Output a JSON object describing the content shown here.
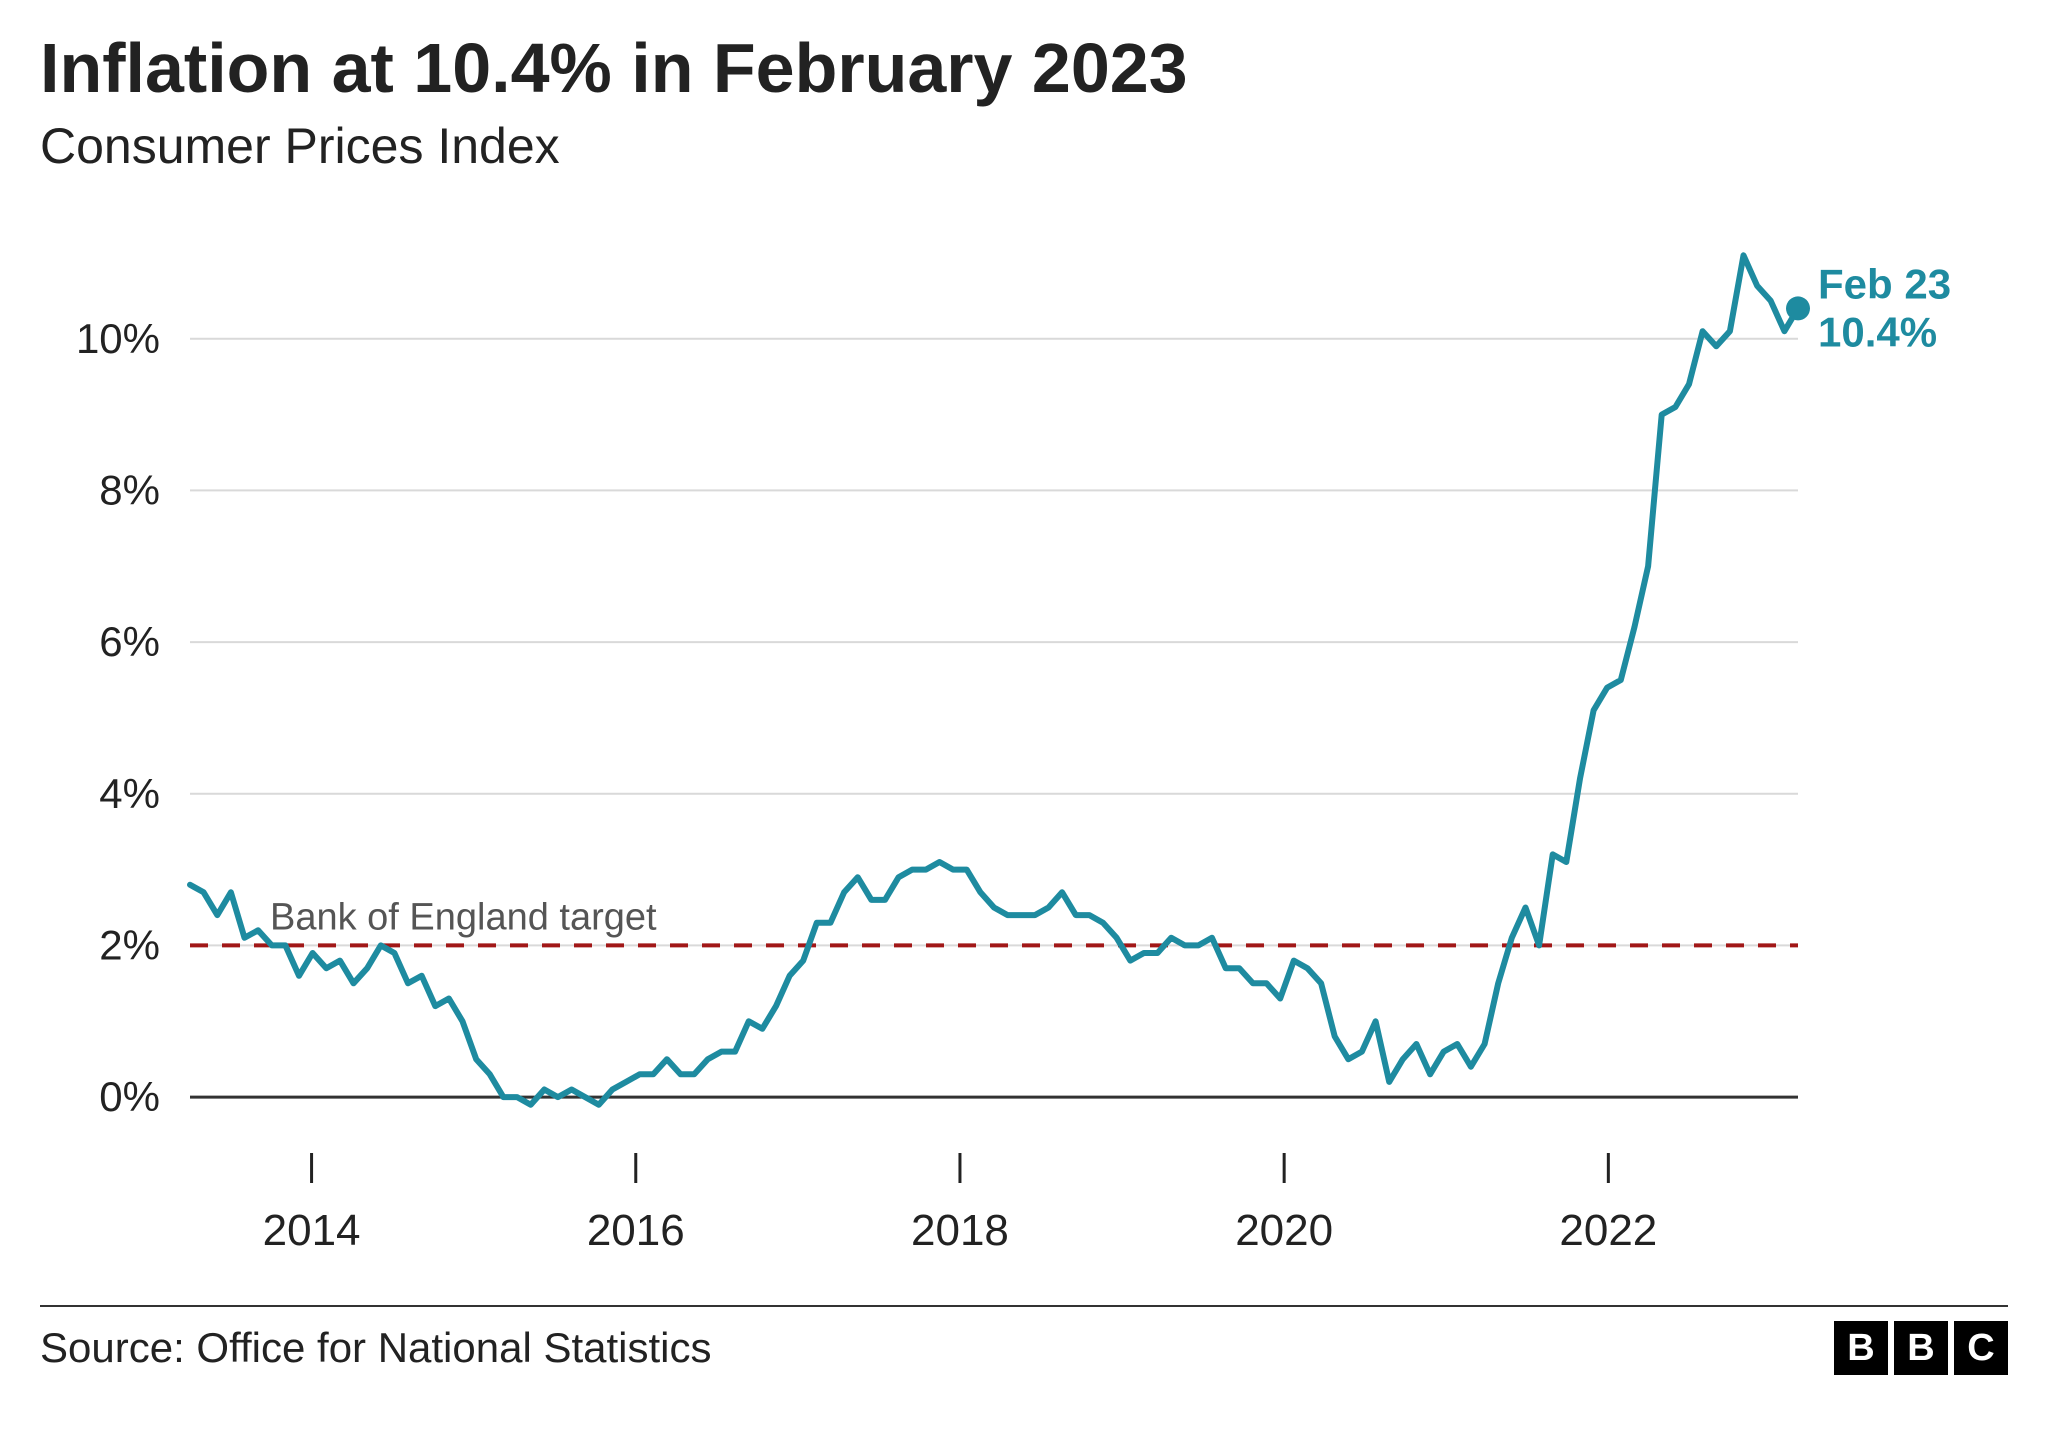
{
  "title": "Inflation at 10.4% in February 2023",
  "subtitle": "Consumer Prices Index",
  "source": "Source: Office for National Statistics",
  "logo_letters": [
    "B",
    "B",
    "C"
  ],
  "chart": {
    "type": "line",
    "background_color": "#ffffff",
    "line_color": "#1e8ba0",
    "line_width": 6,
    "grid_color": "#d9d9d9",
    "zero_line_color": "#333333",
    "target_line_color": "#a11717",
    "target_line_width": 4,
    "target_line_dash": "18 14",
    "target_value": 2,
    "target_label": "Bank of England target",
    "target_label_color": "#555555",
    "ylim": [
      -0.5,
      11.5
    ],
    "y_ticks": [
      0,
      2,
      4,
      6,
      8,
      10
    ],
    "y_tick_labels": [
      "0%",
      "2%",
      "4%",
      "6%",
      "8%",
      "10%"
    ],
    "x_start_year": 2013.25,
    "x_end_year": 2023.17,
    "x_ticks": [
      2014,
      2016,
      2018,
      2020,
      2022
    ],
    "x_tick_labels": [
      "2014",
      "2016",
      "2018",
      "2020",
      "2022"
    ],
    "tick_label_fontsize": 42,
    "end_point_marker_color": "#1e8ba0",
    "end_point_marker_radius": 12,
    "end_label_line1": "Feb 23",
    "end_label_line2": "10.4%",
    "end_label_color": "#1e8ba0",
    "series": [
      2.8,
      2.7,
      2.4,
      2.7,
      2.1,
      2.2,
      2.0,
      2.0,
      1.6,
      1.9,
      1.7,
      1.8,
      1.5,
      1.7,
      2.0,
      1.9,
      1.5,
      1.6,
      1.2,
      1.3,
      1.0,
      0.5,
      0.3,
      0.0,
      0.0,
      -0.1,
      0.1,
      0.0,
      0.1,
      0.0,
      -0.1,
      0.1,
      0.2,
      0.3,
      0.3,
      0.5,
      0.3,
      0.3,
      0.5,
      0.6,
      0.6,
      1.0,
      0.9,
      1.2,
      1.6,
      1.8,
      2.3,
      2.3,
      2.7,
      2.9,
      2.6,
      2.6,
      2.9,
      3.0,
      3.0,
      3.1,
      3.0,
      3.0,
      2.7,
      2.5,
      2.4,
      2.4,
      2.4,
      2.5,
      2.7,
      2.4,
      2.4,
      2.3,
      2.1,
      1.8,
      1.9,
      1.9,
      2.1,
      2.0,
      2.0,
      2.1,
      1.7,
      1.7,
      1.5,
      1.5,
      1.3,
      1.8,
      1.7,
      1.5,
      0.8,
      0.5,
      0.6,
      1.0,
      0.2,
      0.5,
      0.7,
      0.3,
      0.6,
      0.7,
      0.4,
      0.7,
      1.5,
      2.1,
      2.5,
      2.0,
      3.2,
      3.1,
      4.2,
      5.1,
      5.4,
      5.5,
      6.2,
      7.0,
      9.0,
      9.1,
      9.4,
      10.1,
      9.9,
      10.1,
      11.1,
      10.7,
      10.5,
      10.1,
      10.4
    ]
  }
}
